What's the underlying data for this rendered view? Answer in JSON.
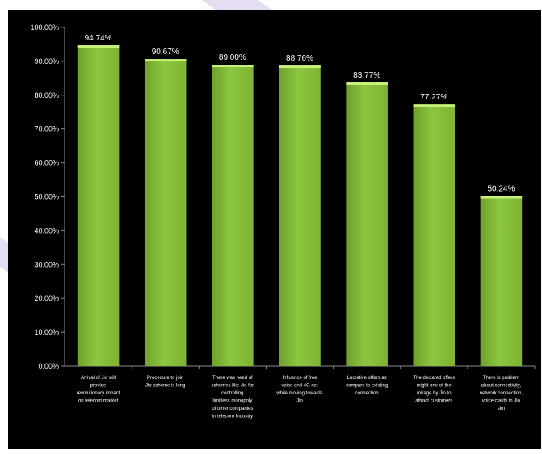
{
  "colors": {
    "background": "#000000",
    "bar_fill": "#8cc63f",
    "bar_highlight": "#c7ef7a",
    "text": "#ffffff",
    "axis": "#8a8a8a",
    "page_decoration": "#e6ddf3"
  },
  "chart_data": {
    "type": "bar",
    "title": "",
    "xlabel": "",
    "ylabel": "",
    "ylim": [
      0,
      100
    ],
    "yticks": [
      "0.00%",
      "10.00%",
      "20.00%",
      "30.00%",
      "40.00%",
      "50.00%",
      "60.00%",
      "70.00%",
      "80.00%",
      "90.00%",
      "100.00%"
    ],
    "grid": false,
    "legend": "none",
    "categories": [
      "Arrival of Jio will provide revolutionary impact on telecom market",
      "Procedure to join Jio scheme is long",
      "There was need of schemes like Jio for controlling limitless monopoly of other companies in telecom Industry",
      "Influence of free voice and 4G net while moving towards Jio",
      "Lucrative offers as compare to existing connection",
      "The declared offers might one of the mirage by Jio to attract customers",
      "There is problem about connectivity, network connection, voice clarity in Jio sim"
    ],
    "values": [
      94.74,
      90.67,
      89.0,
      88.76,
      83.77,
      77.27,
      50.24
    ],
    "value_labels": [
      "94.74%",
      "90.67%",
      "89.00%",
      "88.76%",
      "83.77%",
      "77.27%",
      "50.24%"
    ]
  }
}
